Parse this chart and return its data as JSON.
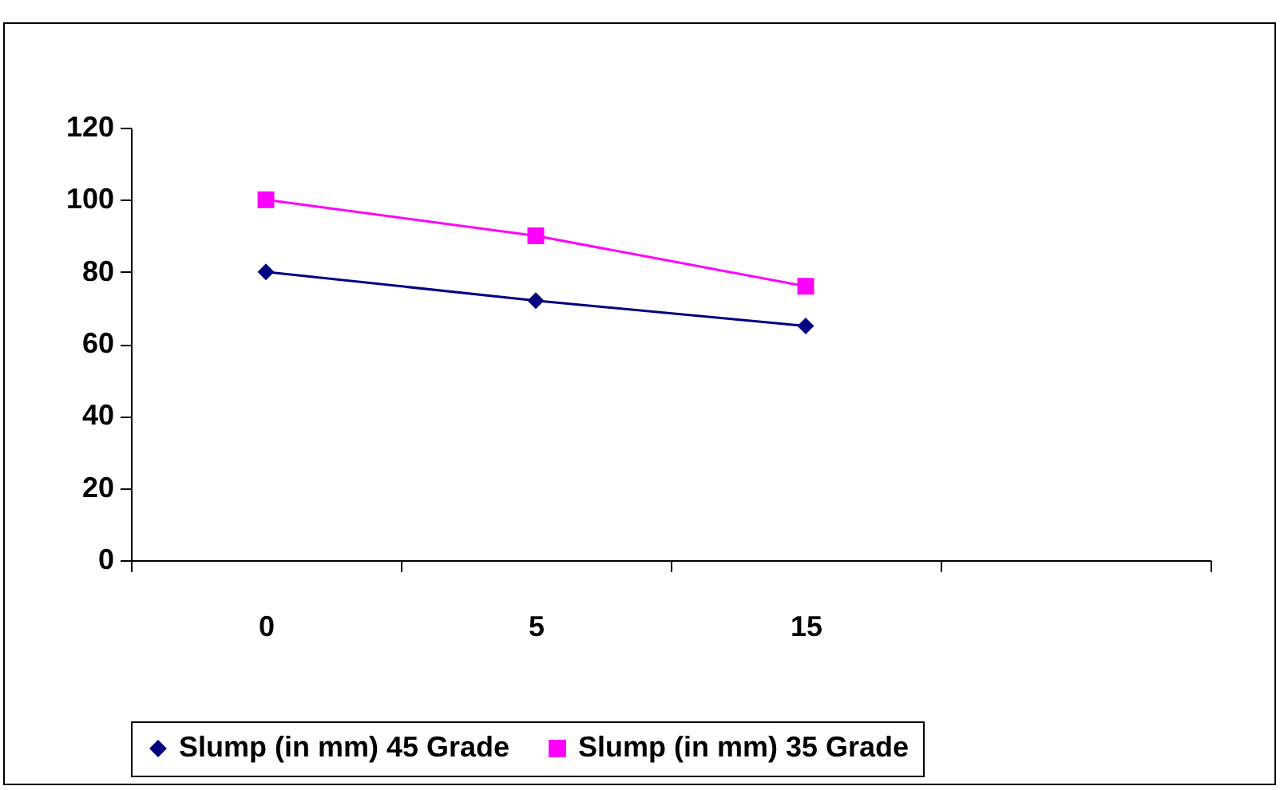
{
  "chart_data": {
    "type": "line",
    "categories": [
      "0",
      "5",
      "15",
      null
    ],
    "series": [
      {
        "name": "Slump (in mm) 45 Grade",
        "color": "#000080",
        "marker": "diamond",
        "values": [
          80,
          72,
          65,
          null
        ]
      },
      {
        "name": "Slump (in mm) 35 Grade",
        "color": "#ff00ff",
        "marker": "square",
        "values": [
          100,
          90,
          76,
          null
        ]
      }
    ],
    "ylim": [
      0,
      120
    ],
    "yticks": [
      0,
      20,
      40,
      60,
      80,
      100,
      120
    ],
    "grid": false,
    "legend": "bottom",
    "line_style": "solid"
  }
}
